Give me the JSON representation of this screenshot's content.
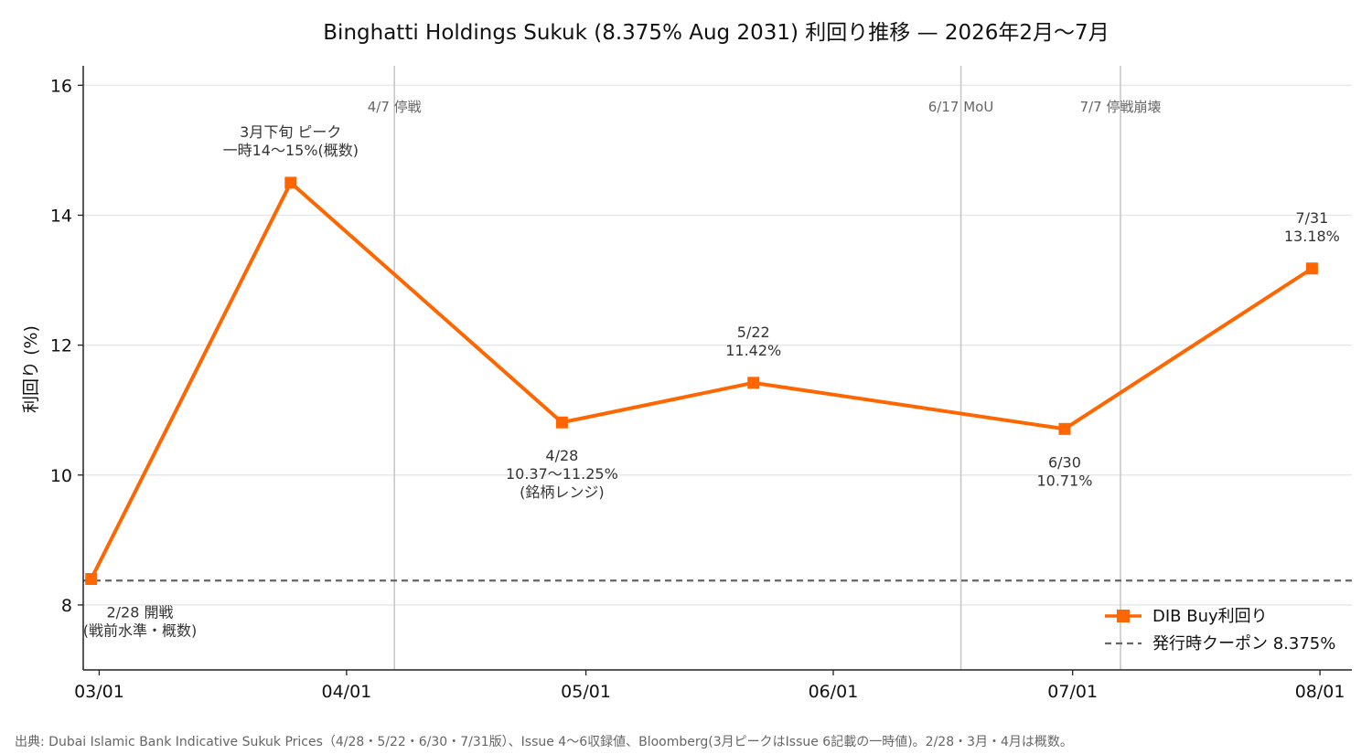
{
  "chart_data": {
    "type": "line",
    "title": "Binghatti Holdings Sukuk (8.375% Aug 2031) 利回り推移 — 2026年2月〜7月",
    "ylabel": "利回り (%)",
    "xlabel": "",
    "ylim": [
      7,
      16.3
    ],
    "yticks": [
      8,
      10,
      12,
      14,
      16
    ],
    "xdomain": [
      "2026-02-27",
      "2026-08-05"
    ],
    "xticks": [
      {
        "date": "2026-03-01",
        "label": "03/01"
      },
      {
        "date": "2026-04-01",
        "label": "04/01"
      },
      {
        "date": "2026-05-01",
        "label": "05/01"
      },
      {
        "date": "2026-06-01",
        "label": "06/01"
      },
      {
        "date": "2026-07-01",
        "label": "07/01"
      },
      {
        "date": "2026-08-01",
        "label": "08/01"
      }
    ],
    "grid": "y",
    "legend_position": "lower right",
    "series": [
      {
        "name": "DIB Buy利回り",
        "color": "#FF6600",
        "marker": "square",
        "points": [
          {
            "x": "2026-02-28",
            "y": 8.4
          },
          {
            "x": "2026-03-25",
            "y": 14.5
          },
          {
            "x": "2026-04-28",
            "y": 10.81
          },
          {
            "x": "2026-05-22",
            "y": 11.42
          },
          {
            "x": "2026-06-30",
            "y": 10.71
          },
          {
            "x": "2026-07-31",
            "y": 13.18
          }
        ]
      }
    ],
    "reference_line": {
      "name": "発行時クーポン 8.375%",
      "y": 8.375,
      "color": "#666666"
    },
    "event_lines": [
      {
        "x": "2026-04-07",
        "label": "4/7 停戦"
      },
      {
        "x": "2026-06-17",
        "label": "6/17 MoU"
      },
      {
        "x": "2026-07-07",
        "label": "7/7 停戦崩壊"
      }
    ],
    "annotations": [
      {
        "point": 0,
        "position": "below",
        "lines": [
          "2/28 開戦",
          "(戦前水準・概数)"
        ]
      },
      {
        "point": 1,
        "position": "above",
        "lines": [
          "3月下旬 ピーク",
          "一時14〜15%(概数)"
        ]
      },
      {
        "point": 2,
        "position": "below",
        "lines": [
          "4/28",
          "10.37〜11.25%",
          "(銘柄レンジ)"
        ]
      },
      {
        "point": 3,
        "position": "above",
        "lines": [
          "5/22",
          "11.42%"
        ]
      },
      {
        "point": 4,
        "position": "below",
        "lines": [
          "6/30",
          "10.71%"
        ]
      },
      {
        "point": 5,
        "position": "above",
        "lines": [
          "7/31",
          "13.18%"
        ]
      }
    ],
    "source": "出典: Dubai Islamic Bank Indicative Sukuk Prices（4/28・5/22・6/30・7/31版）、Issue 4〜6収録値、Bloomberg(3月ピークはIssue 6記載の一時値)。2/28・3月・4月は概数。"
  }
}
